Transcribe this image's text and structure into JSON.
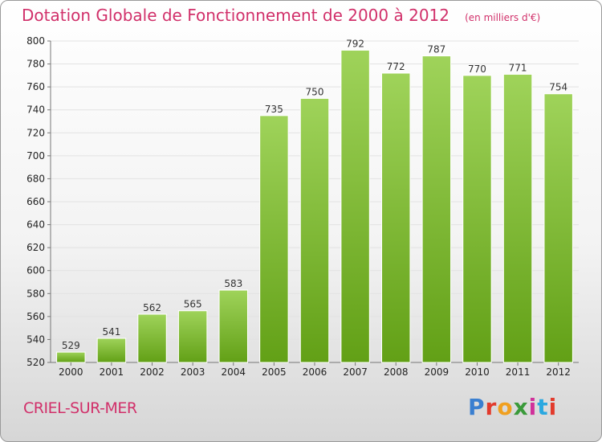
{
  "header": {
    "title": "Dotation Globale de Fonctionnement de 2000 à 2012",
    "unit": "(en milliers d'€)"
  },
  "footer": {
    "commune": "CRIEL-SUR-MER",
    "logo_text": "Proxiti",
    "logo_colors": [
      "#3a7fd0",
      "#e23a2c",
      "#f0a020",
      "#3a9a3a",
      "#d0309a",
      "#2aa8e0",
      "#e23a2c"
    ]
  },
  "chart_data": {
    "type": "bar",
    "title": "Dotation Globale de Fonctionnement de 2000 à 2012",
    "subtitle": "(en milliers d'€)",
    "categories": [
      "2000",
      "2001",
      "2002",
      "2003",
      "2004",
      "2005",
      "2006",
      "2007",
      "2008",
      "2009",
      "2010",
      "2011",
      "2012"
    ],
    "values": [
      529,
      541,
      562,
      565,
      583,
      735,
      750,
      792,
      772,
      787,
      770,
      771,
      754
    ],
    "ylim": [
      520,
      800
    ],
    "yticks": [
      520,
      540,
      560,
      580,
      600,
      620,
      640,
      660,
      680,
      700,
      720,
      740,
      760,
      780,
      800
    ],
    "grid": true,
    "bar_color_top": "#9fd35a",
    "bar_color_bottom": "#62a016"
  }
}
